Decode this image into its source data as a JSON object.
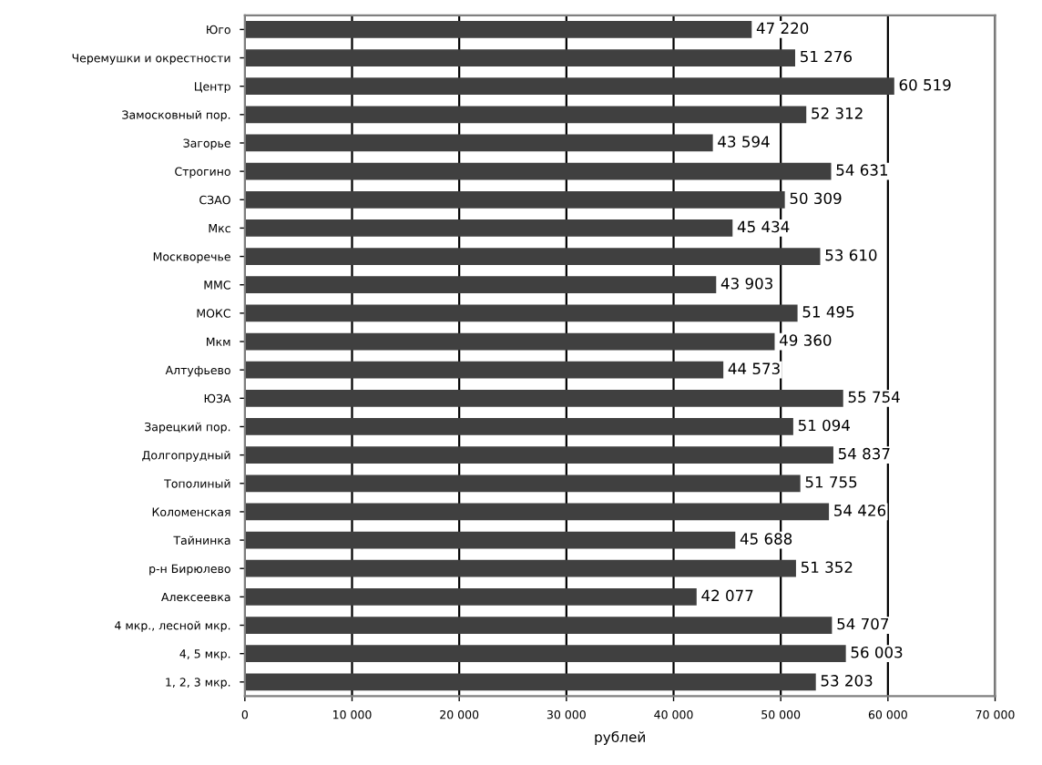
{
  "chart_data": {
    "type": "bar",
    "orientation": "horizontal",
    "categories": [
      "Юго",
      "Черемушки и окрестности",
      "Центр",
      "Замосковный пор.",
      "Загорье",
      "Строгино",
      "СЗАО",
      "Мкс",
      "Москворечье",
      "ММС",
      "МОКС",
      "Мкм",
      "Алтуфьево",
      "ЮЗА",
      "Зарецкий пор.",
      "Долгопрудный",
      "Тополиный",
      "Коломенская",
      "Тайнинка",
      "р-н Бирюлево",
      "Алексеевка",
      "4 мкр., лесной мкр.",
      "4, 5 мкр.",
      "1, 2, 3 мкр."
    ],
    "values": [
      47220,
      51276,
      60519,
      52312,
      43594,
      54631,
      50309,
      45434,
      53610,
      43903,
      51495,
      49360,
      44573,
      55754,
      51094,
      54837,
      51755,
      54426,
      45688,
      51352,
      42077,
      54707,
      56003,
      53203
    ],
    "color": "#404040",
    "xlim": [
      0,
      70000
    ],
    "xticks": [
      {
        "value": 0,
        "label": "0"
      },
      {
        "value": 10000,
        "label": "10 000"
      },
      {
        "value": 20000,
        "label": "20 000"
      },
      {
        "value": 30000,
        "label": "30 000"
      },
      {
        "value": 40000,
        "label": "40 000"
      },
      {
        "value": 50000,
        "label": "50 000"
      },
      {
        "value": 60000,
        "label": "60 000"
      },
      {
        "value": 70000,
        "label": "70 000"
      }
    ],
    "xlabel": "рублей",
    "grid": "x",
    "data_labels": true
  }
}
